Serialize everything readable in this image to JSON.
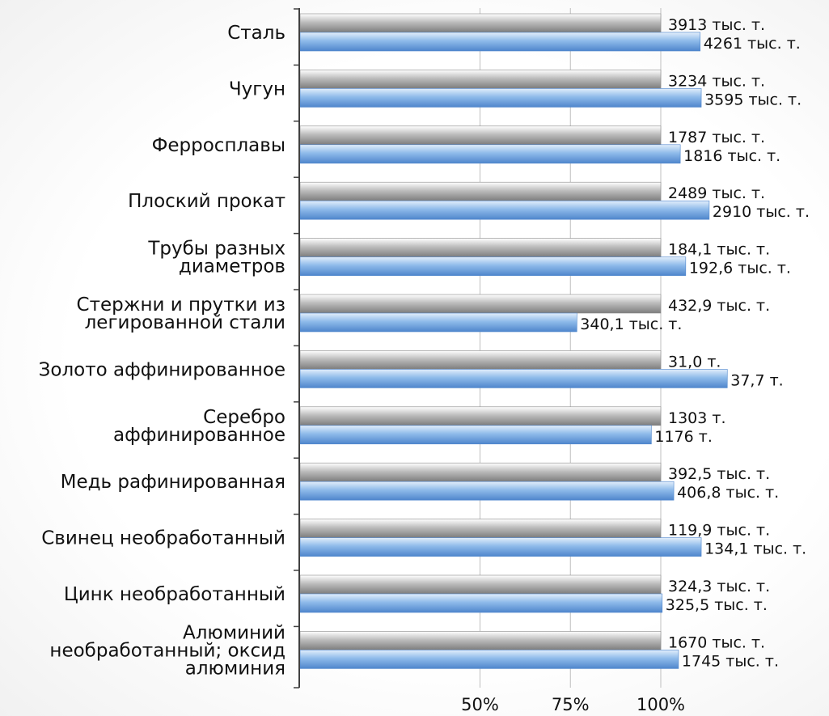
{
  "chart_data": {
    "type": "bar",
    "orientation": "horizontal",
    "xlim": [
      0,
      113.5
    ],
    "x_ticks": [
      50,
      75,
      100
    ],
    "x_tick_labels": [
      "50%",
      "75%",
      "100%"
    ],
    "grid": true,
    "categories": [
      "Сталь",
      "Чугун",
      "Ферросплавы",
      "Плоский прокат",
      "Трубы разных диаметров",
      "Стержни и прутки из легированной стали",
      "Золото аффинированное",
      "Серебро аффинированное",
      "Медь рафинированная",
      "Свинец необработанный",
      "Цинк необработанный",
      "Алюминий необработанный; оксид алюминия"
    ],
    "category_lines": [
      [
        "Сталь"
      ],
      [
        "Чугун"
      ],
      [
        "Ферросплавы"
      ],
      [
        "Плоский прокат"
      ],
      [
        "Трубы разных",
        "диаметров"
      ],
      [
        "Стержни и прутки из",
        "легированной стали"
      ],
      [
        "Золото аффинированное"
      ],
      [
        "Серебро",
        "аффинированное"
      ],
      [
        "Медь рафинированная"
      ],
      [
        "Свинец необработанный"
      ],
      [
        "Цинк необработанный"
      ],
      [
        "Алюминий",
        "необработанный; оксид",
        "алюминия"
      ]
    ],
    "series": [
      {
        "color": "#a6a6a6",
        "values": [
          100,
          100,
          100,
          100,
          100,
          100,
          100,
          100,
          100,
          100,
          100,
          100
        ],
        "labels": [
          "3913 тыс. т.",
          "3234 тыс. т.",
          "1787 тыс. т.",
          "2489 тыс. т.",
          "184,1 тыс. т.",
          "432,9 тыс. т.",
          "31,0 т.",
          "1303 т.",
          "392,5 тыс. т.",
          "119,9 тыс. т.",
          "324,3 тыс. т.",
          "1670 тыс. т."
        ]
      },
      {
        "color": "#6fa3dd",
        "values": [
          110.9,
          111.2,
          105.4,
          113.4,
          106.9,
          76.8,
          118.4,
          97.4,
          103.6,
          111.2,
          100.4,
          104.9
        ],
        "labels": [
          "4261 тыс. т.",
          "3595 тыс. т.",
          "1816 тыс. т.",
          "2910 тыс. т.",
          "192,6 тыс. т.",
          "340,1 тыс. т.",
          "37,7 т.",
          "1176 т.",
          "406,8 тыс. т.",
          "134,1 тыс. т.",
          "325,5 тыс. т.",
          "1745 тыс. т."
        ]
      }
    ]
  }
}
